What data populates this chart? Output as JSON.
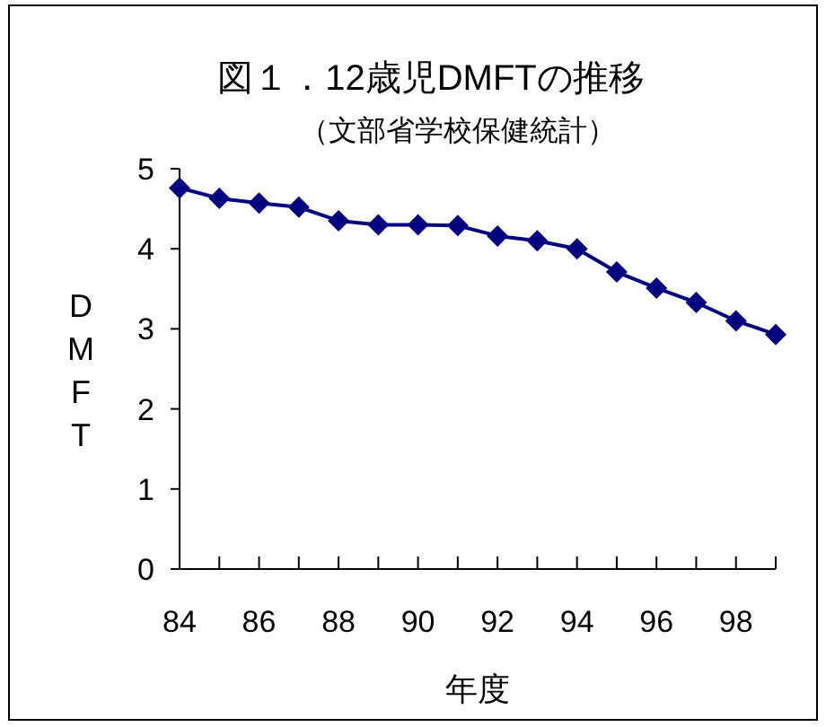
{
  "chart_data": {
    "type": "line",
    "title": "図１．12歳児DMFTの推移",
    "subtitle": "（文部省学校保健統計）",
    "xlabel": "年度",
    "ylabel": "DMFT",
    "x": [
      84,
      85,
      86,
      87,
      88,
      89,
      90,
      91,
      92,
      93,
      94,
      95,
      96,
      97,
      98,
      99
    ],
    "series": [
      {
        "color": "#000080",
        "values": [
          4.76,
          4.63,
          4.57,
          4.52,
          4.35,
          4.3,
          4.3,
          4.29,
          4.16,
          4.1,
          4.0,
          3.71,
          3.51,
          3.33,
          3.1,
          2.93
        ]
      }
    ],
    "xlim": [
      84,
      99
    ],
    "xticks": [
      84,
      {
        "value": 85,
        "label": null
      },
      86,
      {
        "value": 87,
        "label": null
      },
      88,
      {
        "value": 89,
        "label": null
      },
      90,
      {
        "value": 91,
        "label": null
      },
      92,
      {
        "value": 93,
        "label": null
      },
      94,
      {
        "value": 95,
        "label": null
      },
      96,
      {
        "value": 97,
        "label": null
      },
      98,
      {
        "value": 99,
        "label": null
      }
    ],
    "ylim": [
      0,
      5
    ],
    "yticks": [
      0,
      1,
      2,
      3,
      4,
      5
    ],
    "marker": "diamond",
    "line_style": "solid",
    "grid": false
  }
}
